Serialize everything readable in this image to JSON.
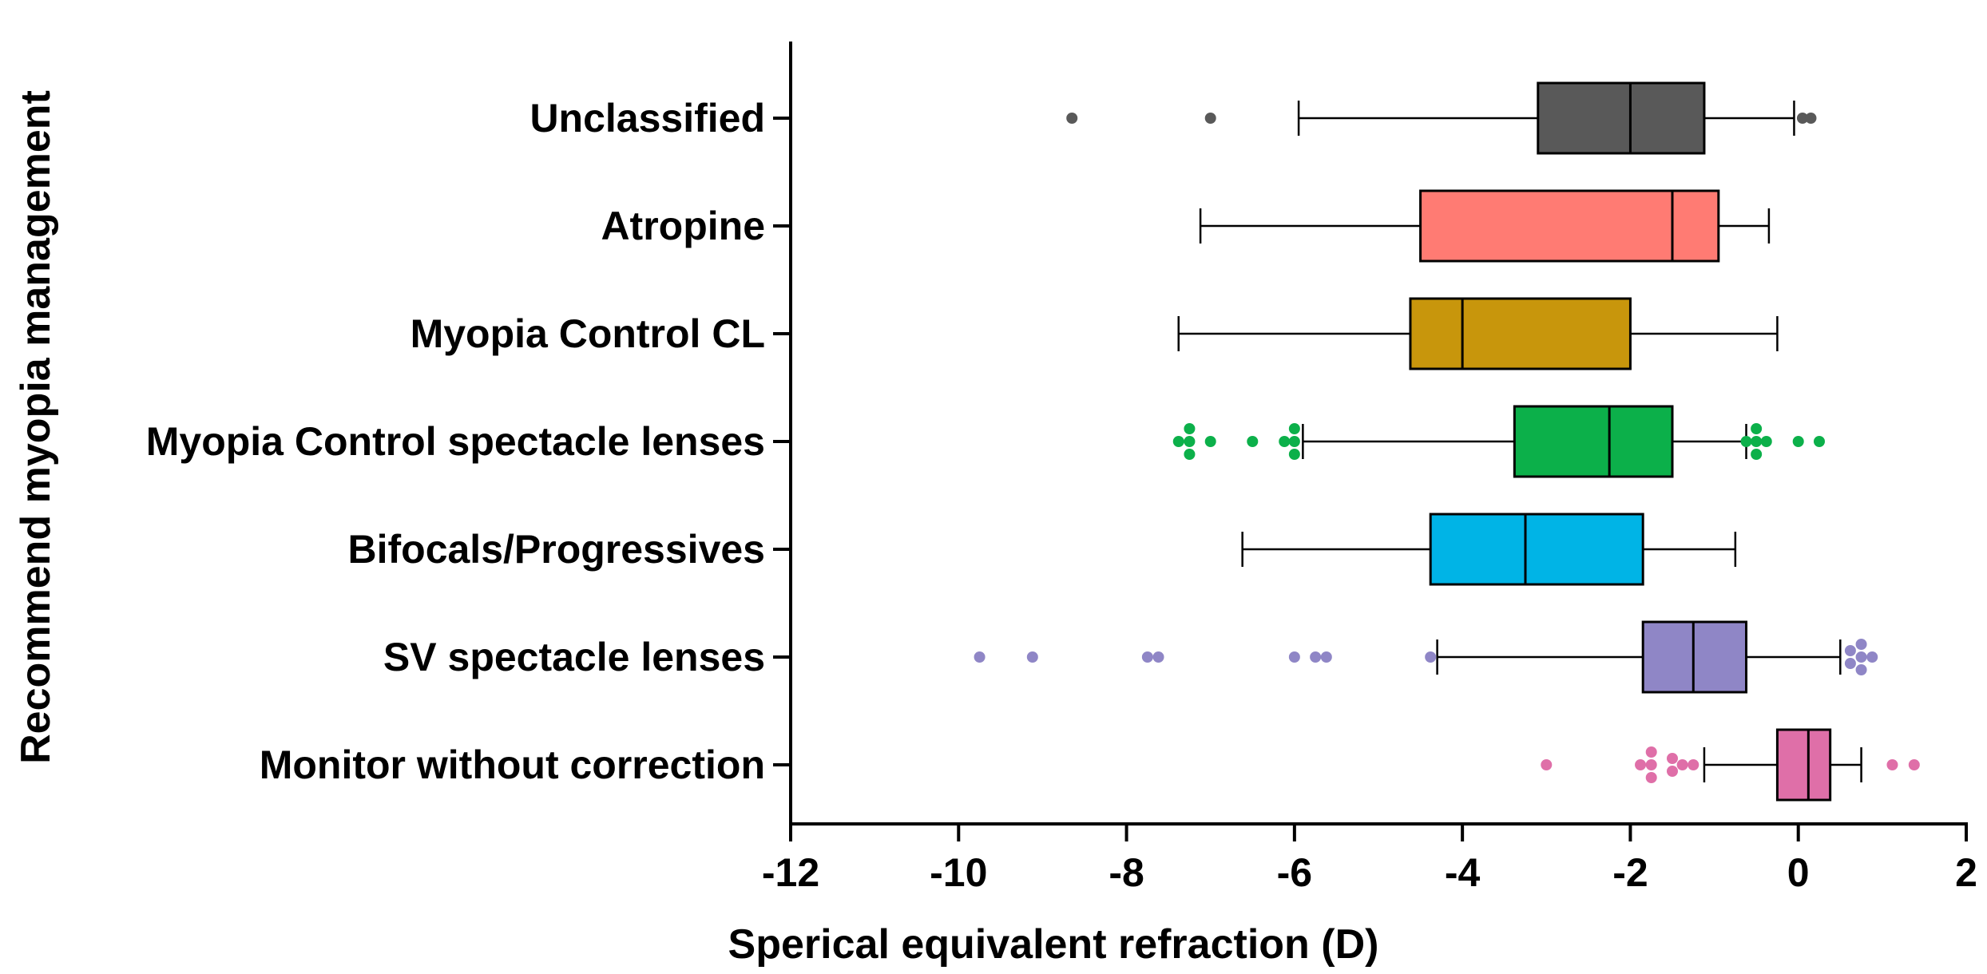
{
  "chart_data": {
    "type": "boxplot",
    "orientation": "horizontal",
    "xlabel": "Sperical equivalent refraction (D)",
    "ylabel": "Recommend myopia management",
    "xlim": [
      -12,
      2
    ],
    "xticks": [
      -12,
      -10,
      -8,
      -6,
      -4,
      -2,
      0,
      2
    ],
    "xtick_labels": [
      "-12",
      "-10",
      "-8",
      "-6",
      "-4",
      "-2",
      "0",
      "2"
    ],
    "groups": [
      {
        "label": "Unclassified",
        "color": "#595959",
        "whisker_low": -5.95,
        "q1": -3.1,
        "median": -2.0,
        "q3": -1.12,
        "whisker_high": -0.05,
        "outliers": [
          -8.65,
          -7.0,
          0.05,
          0.15
        ]
      },
      {
        "label": "Atropine",
        "color": "#FF7B73",
        "whisker_low": -7.12,
        "q1": -4.5,
        "median": -1.5,
        "q3": -0.95,
        "whisker_high": -0.35,
        "outliers": []
      },
      {
        "label": "Myopia Control CL",
        "color": "#C8960C",
        "whisker_low": -7.38,
        "q1": -4.62,
        "median": -4.0,
        "q3": -2.0,
        "whisker_high": -0.25,
        "outliers": []
      },
      {
        "label": "Myopia Control spectacle lenses",
        "color": "#0CB04A",
        "whisker_low": -5.9,
        "q1": -3.38,
        "median": -2.25,
        "q3": -1.5,
        "whisker_high": -0.62,
        "outliers": [
          -7.38,
          -7.25,
          -7.25,
          -7.25,
          -7.0,
          -6.5,
          -6.12,
          -6.0,
          -6.0,
          -6.0,
          -0.62,
          -0.5,
          -0.5,
          -0.5,
          -0.38,
          0.0,
          0.25
        ]
      },
      {
        "label": "Bifocals/Progressives",
        "color": "#00B4E6",
        "whisker_low": -6.62,
        "q1": -4.38,
        "median": -3.25,
        "q3": -1.85,
        "whisker_high": -0.75,
        "outliers": []
      },
      {
        "label": "SV spectacle lenses",
        "color": "#8F86C6",
        "whisker_low": -4.3,
        "q1": -1.85,
        "median": -1.25,
        "q3": -0.62,
        "whisker_high": 0.5,
        "outliers": [
          -9.75,
          -9.12,
          -7.75,
          -7.62,
          -6.0,
          -5.75,
          -5.62,
          -4.38,
          0.62,
          0.62,
          0.75,
          0.75,
          0.75,
          0.88
        ]
      },
      {
        "label": "Monitor without correction",
        "color": "#DF6FA8",
        "whisker_low": -1.12,
        "q1": -0.25,
        "median": 0.12,
        "q3": 0.38,
        "whisker_high": 0.75,
        "outliers": [
          -3.0,
          -1.88,
          -1.75,
          -1.75,
          -1.75,
          -1.5,
          -1.5,
          -1.38,
          -1.25,
          1.12,
          1.38
        ]
      }
    ]
  }
}
